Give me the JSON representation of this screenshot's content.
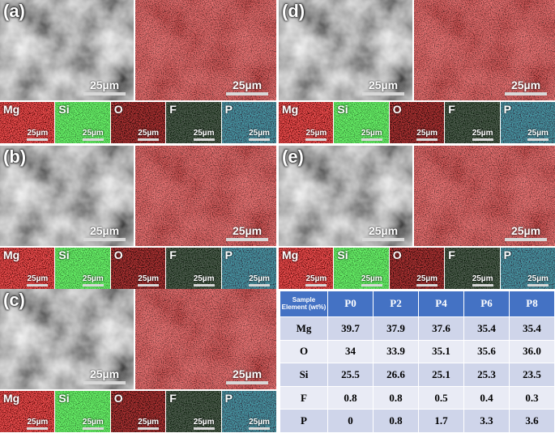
{
  "panels": [
    {
      "label": "(a)",
      "scale_bar": "25µm",
      "elements": [
        "Mg",
        "Si",
        "O",
        "F",
        "P"
      ]
    },
    {
      "label": "(b)",
      "scale_bar": "25µm",
      "elements": [
        "Mg",
        "Si",
        "O",
        "F",
        "P"
      ]
    },
    {
      "label": "(c)",
      "scale_bar": "25µm",
      "elements": [
        "Mg",
        "Si",
        "O",
        "F",
        "P"
      ]
    },
    {
      "label": "(d)",
      "scale_bar": "25µm",
      "elements": [
        "Mg",
        "Si",
        "O",
        "F",
        "P"
      ]
    },
    {
      "label": "(e)",
      "scale_bar": "25µm",
      "elements": [
        "Mg",
        "Si",
        "O",
        "F",
        "P"
      ]
    }
  ],
  "table": {
    "header": [
      "Sample Element (wt%)",
      "P0",
      "P2",
      "P4",
      "P6",
      "P8"
    ],
    "rows": [
      [
        "Mg",
        "39.7",
        "37.9",
        "37.6",
        "35.4",
        "35.4"
      ],
      [
        "O",
        "34",
        "33.9",
        "35.1",
        "35.6",
        "36.0"
      ],
      [
        "Si",
        "25.5",
        "26.6",
        "25.1",
        "25.3",
        "23.5"
      ],
      [
        "F",
        "0.8",
        "0.8",
        "0.5",
        "0.4",
        "0.3"
      ],
      [
        "P",
        "0",
        "0.8",
        "1.7",
        "3.3",
        "3.6"
      ]
    ]
  }
}
